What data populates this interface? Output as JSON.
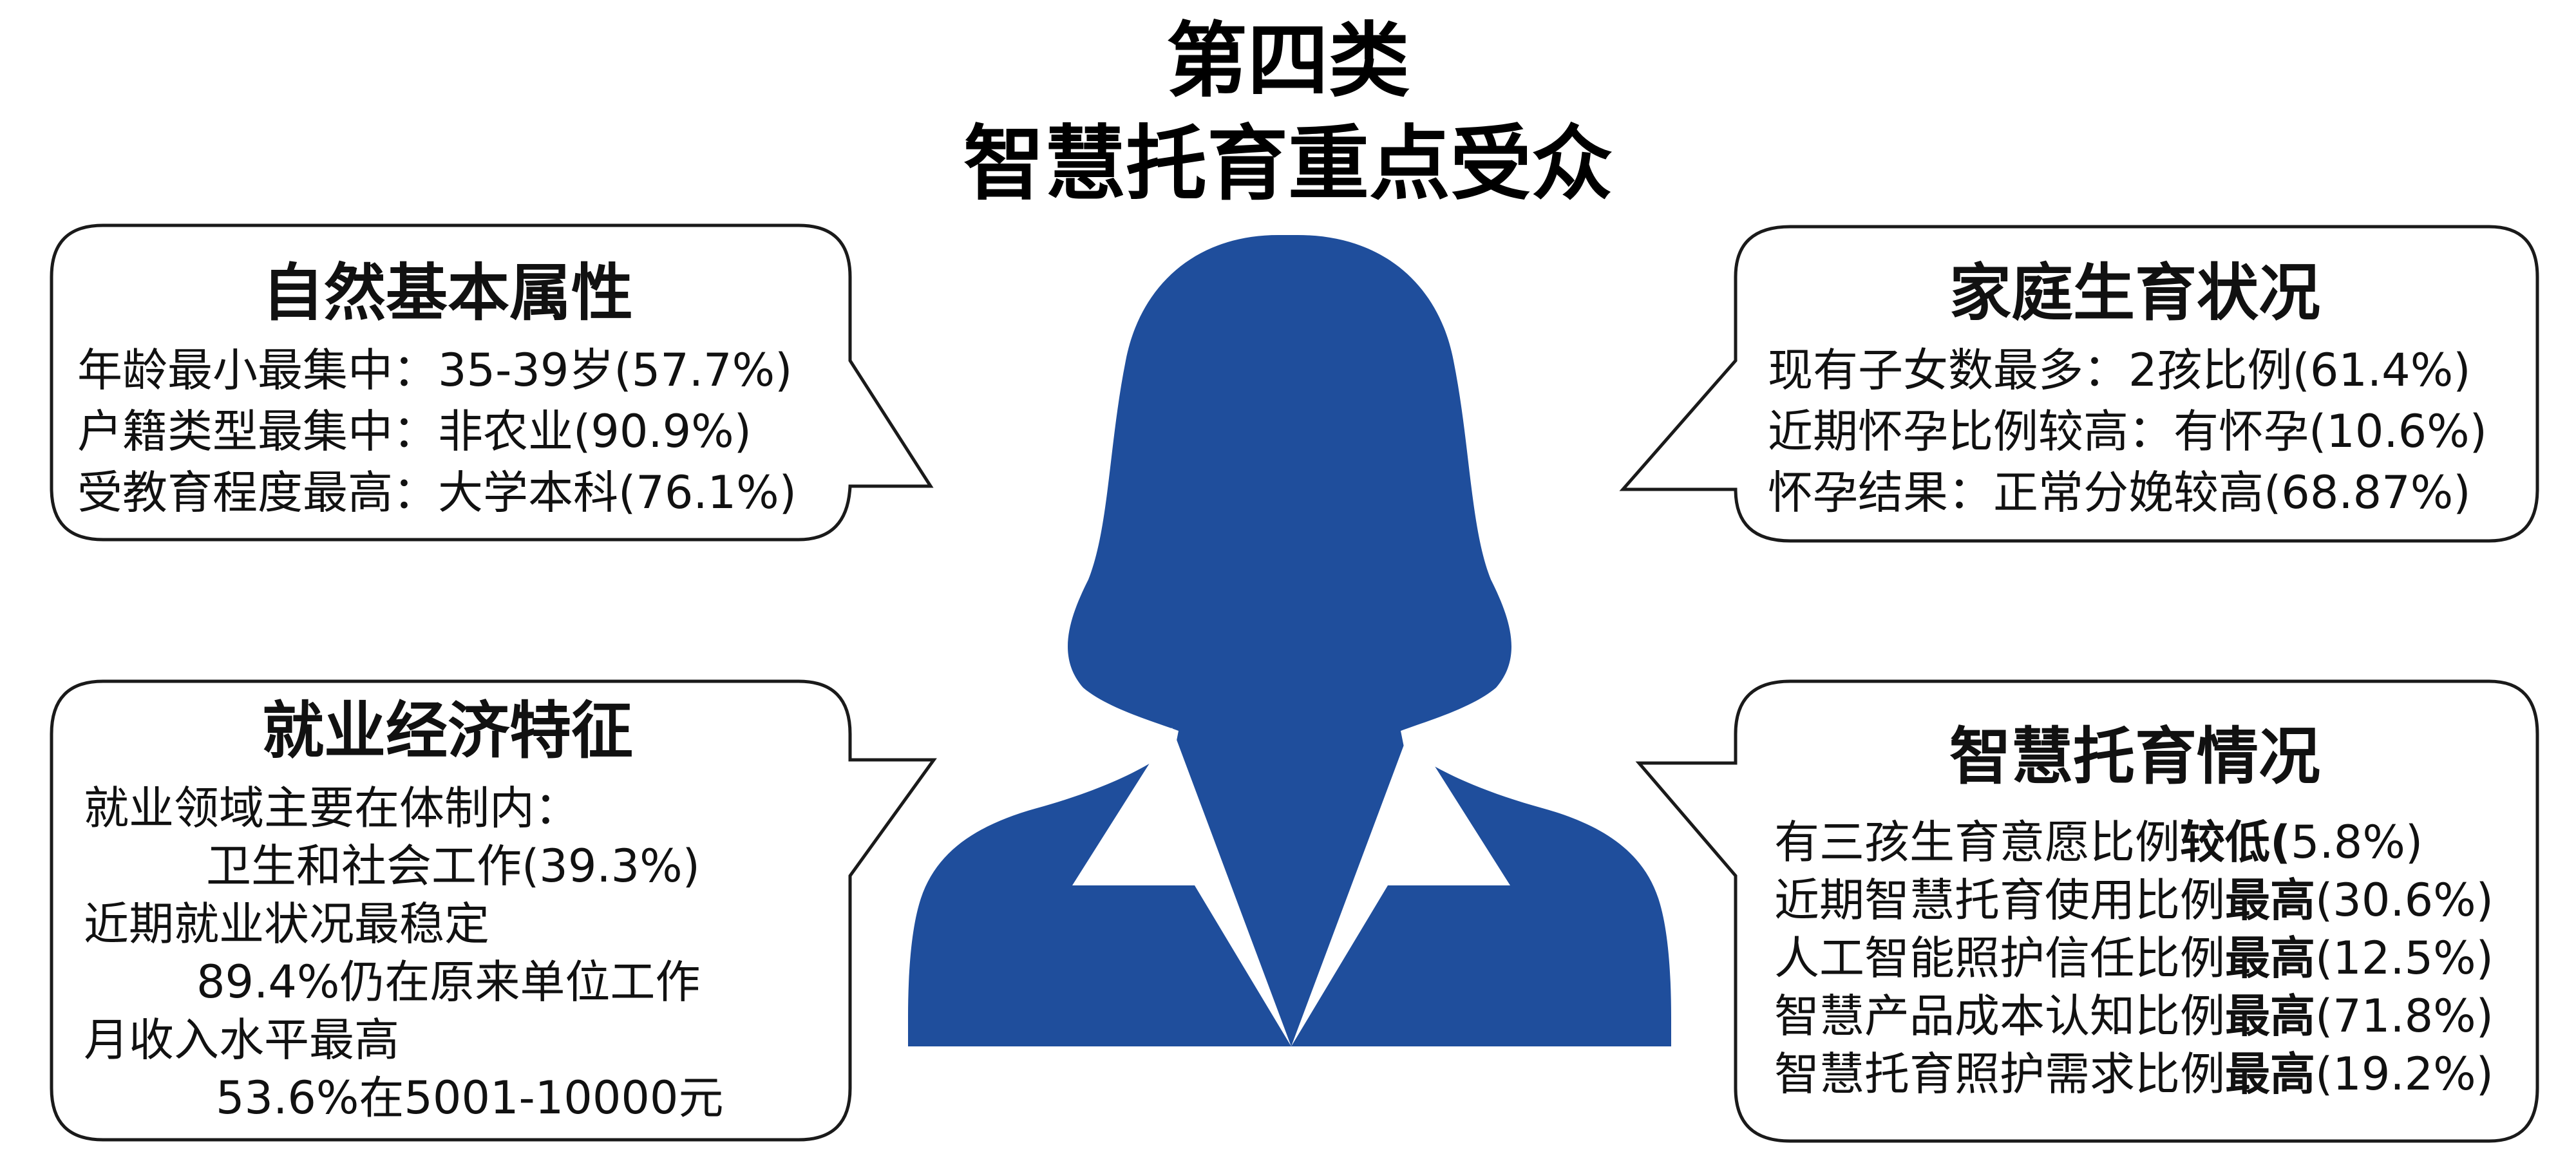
{
  "title_line1": "第四类",
  "title_line2": "智慧托育重点受众",
  "colors": {
    "silhouette": "#1f4e9c",
    "outline": "#1a1a1a"
  },
  "icons": {
    "figure": "female-bust-silhouette-icon"
  },
  "sections": {
    "natural": {
      "title": "自然基本属性",
      "lines": [
        {
          "label": "年龄最小最集中：",
          "value": "35-39岁(57.7%)"
        },
        {
          "label": "户籍类型最集中：",
          "value": "非农业(90.9%)"
        },
        {
          "label": "受教育程度最高：",
          "value": "大学本科(76.1%)"
        }
      ]
    },
    "family": {
      "title": "家庭生育状况",
      "lines": [
        {
          "label": "现有子女数最多：",
          "value": "2孩比例(61.4%)"
        },
        {
          "label": "近期怀孕比例较高：",
          "value": "有怀孕(10.6%)"
        },
        {
          "label": "怀孕结果：",
          "value": "正常分娩较高(68.87%)"
        }
      ]
    },
    "employment": {
      "title": "就业经济特征",
      "lines": [
        "就业领域主要在体制内：",
        "卫生和社会工作(39.3%)",
        "近期就业状况最稳定",
        "89.4%仍在原来单位工作",
        "月收入水平最高",
        "53.6%在5001-10000元"
      ]
    },
    "smart": {
      "title": "智慧托育情况",
      "lines": [
        {
          "pre": "有三孩生育意愿比例",
          "bold": "较低(",
          "post": "5.8%)"
        },
        {
          "pre": "近期智慧托育使用比例",
          "bold": "最高",
          "post": "(30.6%)"
        },
        {
          "pre": "人工智能照护信任比例",
          "bold": "最高",
          "post": "(12.5%)"
        },
        {
          "pre": "智慧产品成本认知比例",
          "bold": "最高",
          "post": "(71.8%)"
        },
        {
          "pre": "智慧托育照护需求比例",
          "bold": "最高",
          "post": "(19.2%)"
        }
      ]
    }
  }
}
